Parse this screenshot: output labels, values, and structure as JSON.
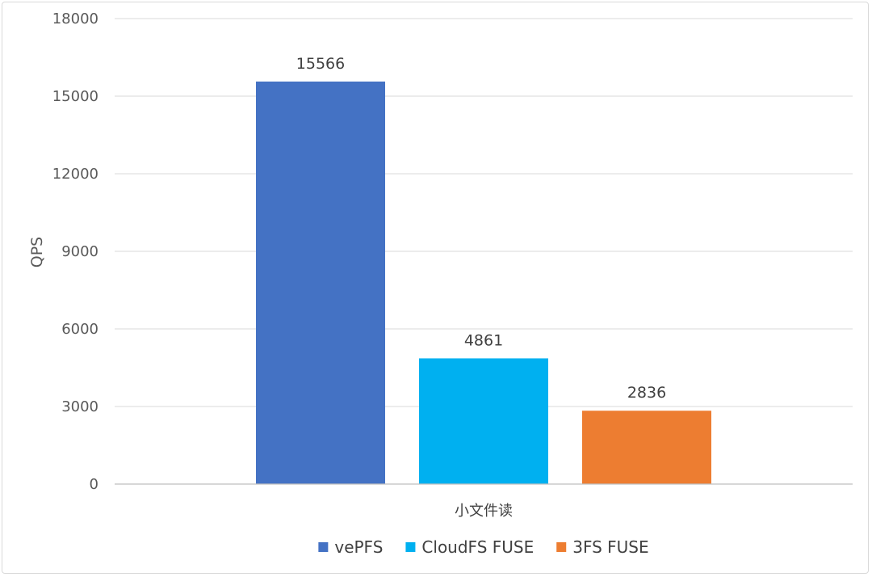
{
  "chart_data": {
    "type": "bar",
    "categories": [
      "小文件读"
    ],
    "series": [
      {
        "name": "vePFS",
        "values": [
          15566
        ],
        "color": "#4472C4"
      },
      {
        "name": "CloudFS FUSE",
        "values": [
          4861
        ],
        "color": "#00B0F0"
      },
      {
        "name": "3FS FUSE",
        "values": [
          2836
        ],
        "color": "#ED7D31"
      }
    ],
    "ylabel": "QPS",
    "ylim": [
      0,
      18000
    ],
    "yticks": [
      0,
      3000,
      6000,
      9000,
      12000,
      15000,
      18000
    ],
    "grid": true,
    "legend": "bottom-center",
    "data_labels": true
  }
}
